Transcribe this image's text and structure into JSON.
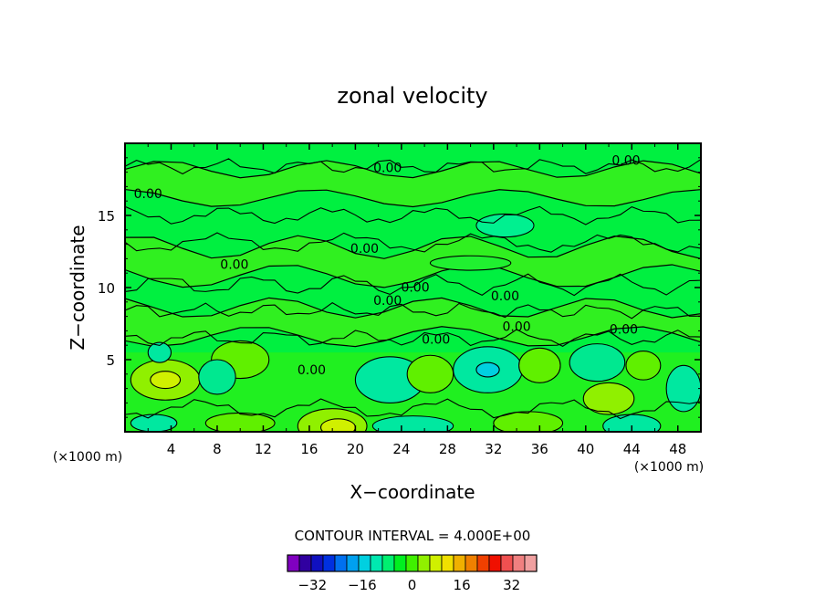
{
  "chart_data": {
    "type": "heatmap",
    "title": "zonal velocity",
    "xlabel": "X−coordinate",
    "ylabel": "Z−coordinate",
    "x_units_left": "(×1000 m)",
    "x_units_right": "(×1000 m)",
    "xlim": [
      0,
      50
    ],
    "ylim": [
      0,
      20
    ],
    "x_ticks": [
      4,
      8,
      12,
      16,
      20,
      24,
      28,
      32,
      36,
      40,
      44,
      48
    ],
    "y_ticks": [
      5,
      10,
      15
    ],
    "contour_interval_text": "CONTOUR INTERVAL = 4.000E+00",
    "contour_labels": [
      {
        "x": 20.8,
        "z": 12.4,
        "text": "0.00"
      },
      {
        "x": 9.5,
        "z": 11.3,
        "text": "0.00"
      },
      {
        "x": 2.0,
        "z": 16.2,
        "text": "0.00"
      },
      {
        "x": 22.8,
        "z": 18.0,
        "text": "0.00"
      },
      {
        "x": 43.5,
        "z": 18.5,
        "text": "0.00"
      },
      {
        "x": 22.8,
        "z": 8.8,
        "text": "0.00"
      },
      {
        "x": 25.2,
        "z": 9.7,
        "text": "0.00"
      },
      {
        "x": 33.0,
        "z": 9.1,
        "text": "0.00"
      },
      {
        "x": 27.0,
        "z": 6.1,
        "text": "0.00"
      },
      {
        "x": 34.0,
        "z": 7.0,
        "text": "0.00"
      },
      {
        "x": 43.3,
        "z": 6.8,
        "text": "0.00"
      },
      {
        "x": 16.2,
        "z": 4.0,
        "text": "0.00"
      }
    ],
    "colorbar": {
      "colors": [
        "#8000c0",
        "#3000a0",
        "#1010c0",
        "#0030e0",
        "#0070f0",
        "#00a0f0",
        "#00d0e0",
        "#00e8b0",
        "#00f070",
        "#00f020",
        "#40f000",
        "#90f000",
        "#d0f000",
        "#f0e000",
        "#f0b000",
        "#f08000",
        "#f04000",
        "#f01000",
        "#f05050",
        "#f08080",
        "#f0a0a0"
      ],
      "tick_labels": [
        "−32",
        "−16",
        "0",
        "16",
        "32"
      ],
      "tick_values": [
        -32,
        -16,
        0,
        16,
        32
      ],
      "range": [
        -40,
        40
      ]
    },
    "dominant_color": "#00ff40"
  }
}
